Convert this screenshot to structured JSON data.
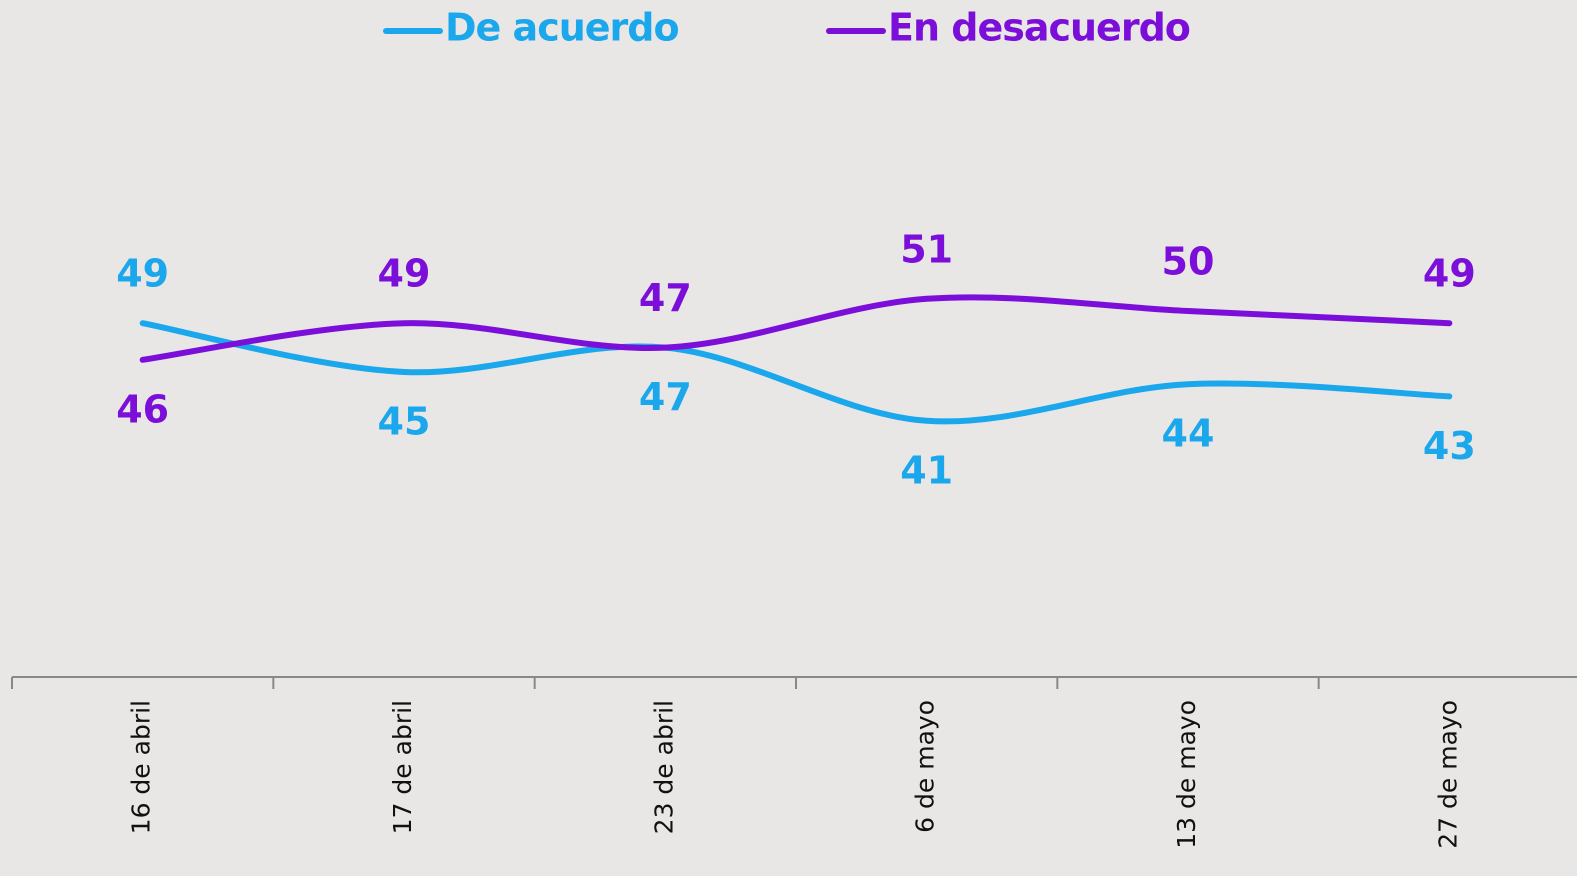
{
  "chart_data": {
    "type": "line",
    "categories": [
      "16 de abril",
      "17 de abril",
      "23 de abril",
      "6 de mayo",
      "13 de mayo",
      "27 de mayo"
    ],
    "series": [
      {
        "name": "De acuerdo",
        "color": "#1aa7ec",
        "values": [
          49,
          45,
          47,
          41,
          44,
          43
        ]
      },
      {
        "name": "En desacuerdo",
        "color": "#7b0fd9",
        "values": [
          46,
          49,
          47,
          51,
          50,
          49
        ]
      }
    ],
    "ylim": [
      20,
      70
    ]
  }
}
